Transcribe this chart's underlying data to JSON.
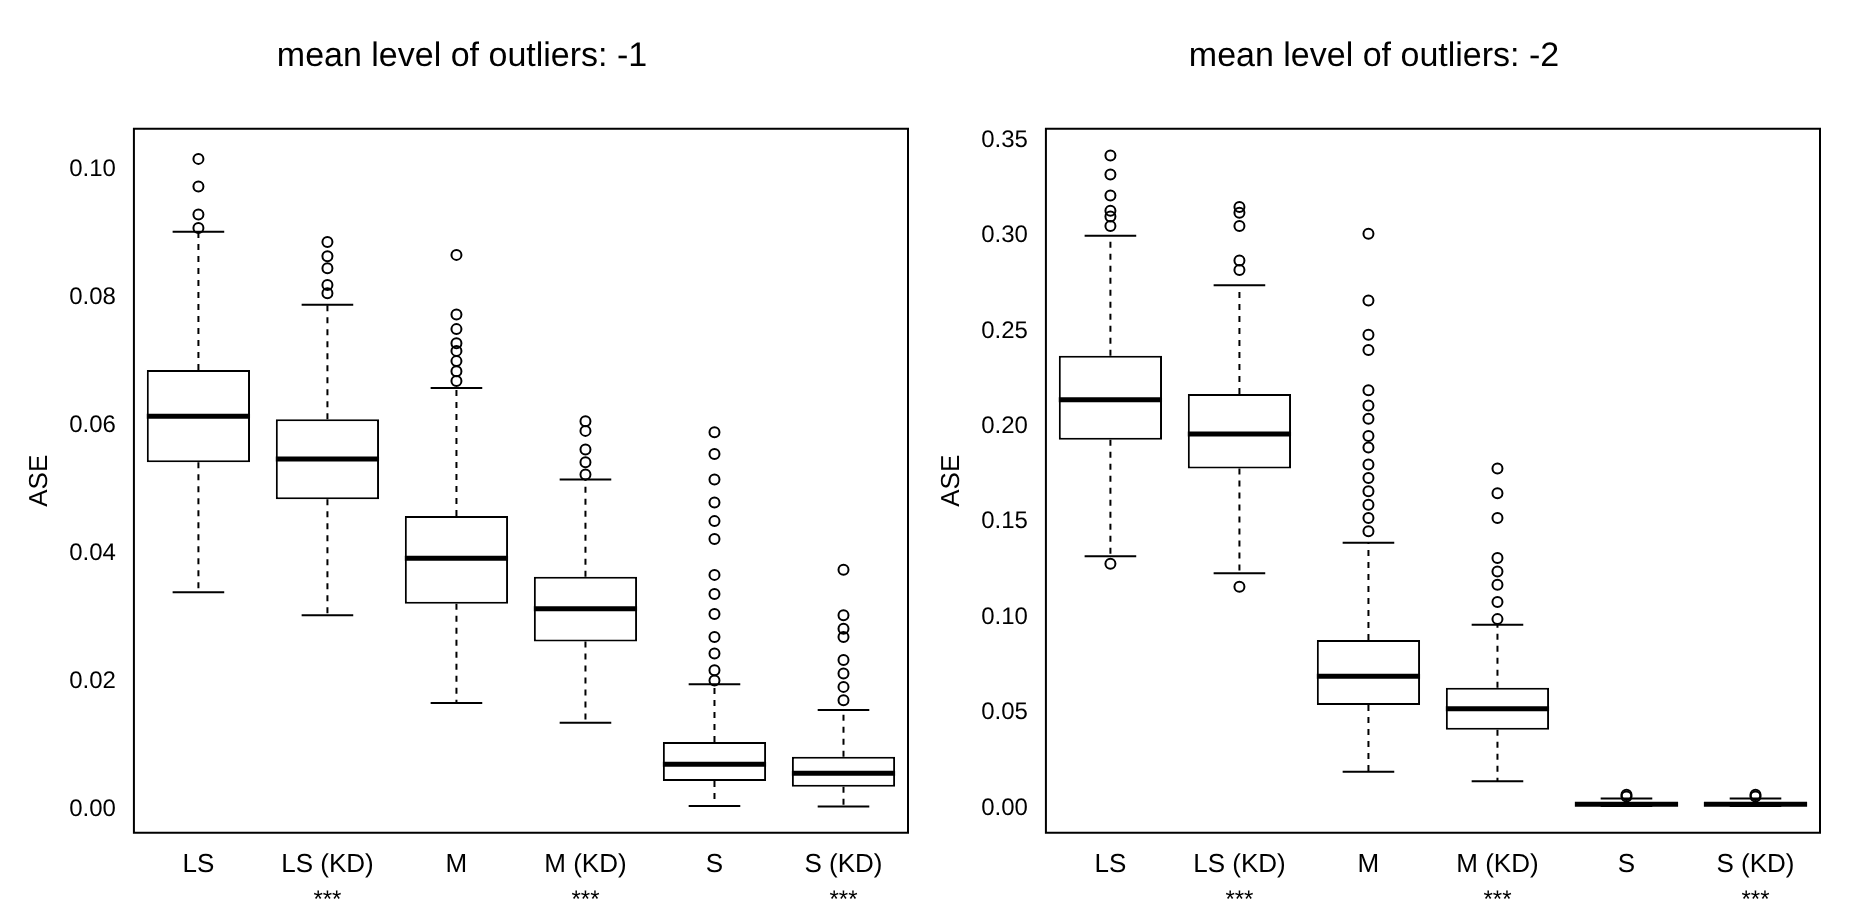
{
  "chart_data": [
    {
      "type": "box",
      "title": "mean level of outliers: -1",
      "ylabel": "ASE",
      "categories": [
        "LS",
        "LS (KD)",
        "M",
        "M (KD)",
        "S",
        "S (KD)"
      ],
      "boxes": [
        {
          "low": 0.034,
          "q1": 0.0543,
          "median": 0.0615,
          "q3": 0.0687,
          "high": 0.0903,
          "outliers": [
            0.1017,
            0.0974,
            0.093,
            0.0909
          ]
        },
        {
          "low": 0.0304,
          "q1": 0.0485,
          "median": 0.0548,
          "q3": 0.061,
          "high": 0.0789,
          "outliers": [
            0.0887,
            0.0865,
            0.0846,
            0.082,
            0.0807
          ]
        },
        {
          "low": 0.0167,
          "q1": 0.0322,
          "median": 0.0393,
          "q3": 0.0459,
          "high": 0.0659,
          "outliers": [
            0.0867,
            0.0774,
            0.0751,
            0.0729,
            0.0717,
            0.0701,
            0.0685,
            0.067
          ]
        },
        {
          "low": 0.0136,
          "q1": 0.0263,
          "median": 0.0314,
          "q3": 0.0364,
          "high": 0.0516,
          "outliers": [
            0.0607,
            0.0592,
            0.0563,
            0.0543,
            0.0524
          ]
        },
        {
          "low": 0.0006,
          "q1": 0.0045,
          "median": 0.0071,
          "q3": 0.0106,
          "high": 0.0196,
          "outliers": [
            0.059,
            0.0556,
            0.0516,
            0.048,
            0.0451,
            0.0423,
            0.0367,
            0.0337,
            0.0306,
            0.027,
            0.0244,
            0.0218,
            0.0202
          ]
        },
        {
          "low": 0.0005,
          "q1": 0.0036,
          "median": 0.0057,
          "q3": 0.0083,
          "high": 0.0156,
          "outliers": [
            0.0375,
            0.0304,
            0.0283,
            0.027,
            0.0234,
            0.0213,
            0.0192,
            0.0171
          ]
        }
      ],
      "ylim": [
        -0.0036,
        0.1064
      ],
      "yticks": [
        {
          "value": 0,
          "label": "0.00"
        },
        {
          "value": 0.02,
          "label": "0.02"
        },
        {
          "value": 0.04,
          "label": "0.04"
        },
        {
          "value": 0.06,
          "label": "0.06"
        },
        {
          "value": 0.08,
          "label": "0.08"
        },
        {
          "value": 0.1,
          "label": "0.10"
        }
      ],
      "annotations": [
        "***",
        "***",
        "***"
      ]
    },
    {
      "type": "box",
      "title": "mean level of outliers: -2",
      "ylabel": "ASE",
      "categories": [
        "LS",
        "LS (KD)",
        "M",
        "M (KD)",
        "S",
        "S (KD)"
      ],
      "boxes": [
        {
          "low": 0.132,
          "q1": 0.193,
          "median": 0.214,
          "q3": 0.237,
          "high": 0.3,
          "outliers": [
            0.128,
            0.342,
            0.332,
            0.321,
            0.313,
            0.31,
            0.305
          ]
        },
        {
          "low": 0.123,
          "q1": 0.178,
          "median": 0.196,
          "q3": 0.217,
          "high": 0.274,
          "outliers": [
            0.116,
            0.315,
            0.312,
            0.305,
            0.287,
            0.282
          ]
        },
        {
          "low": 0.019,
          "q1": 0.054,
          "median": 0.069,
          "q3": 0.088,
          "high": 0.139,
          "outliers": [
            0.301,
            0.266,
            0.248,
            0.24,
            0.219,
            0.211,
            0.204,
            0.195,
            0.189,
            0.18,
            0.173,
            0.166,
            0.159,
            0.152,
            0.145
          ]
        },
        {
          "low": 0.014,
          "q1": 0.041,
          "median": 0.052,
          "q3": 0.063,
          "high": 0.096,
          "outliers": [
            0.178,
            0.165,
            0.152,
            0.131,
            0.124,
            0.117,
            0.108,
            0.099
          ]
        },
        {
          "low": 0.001,
          "q1": 0.001,
          "median": 0.002,
          "q3": 0.003,
          "high": 0.005,
          "outliers": [
            0.006,
            0.007
          ]
        },
        {
          "low": 0.001,
          "q1": 0.001,
          "median": 0.002,
          "q3": 0.003,
          "high": 0.005,
          "outliers": [
            0.006,
            0.007
          ]
        }
      ],
      "ylim": [
        -0.013,
        0.356
      ],
      "yticks": [
        {
          "value": 0,
          "label": "0.00"
        },
        {
          "value": 0.05,
          "label": "0.05"
        },
        {
          "value": 0.1,
          "label": "0.10"
        },
        {
          "value": 0.15,
          "label": "0.15"
        },
        {
          "value": 0.2,
          "label": "0.20"
        },
        {
          "value": 0.25,
          "label": "0.25"
        },
        {
          "value": 0.3,
          "label": "0.30"
        },
        {
          "value": 0.35,
          "label": "0.35"
        }
      ],
      "annotations": [
        "***",
        "***",
        "***"
      ]
    }
  ]
}
